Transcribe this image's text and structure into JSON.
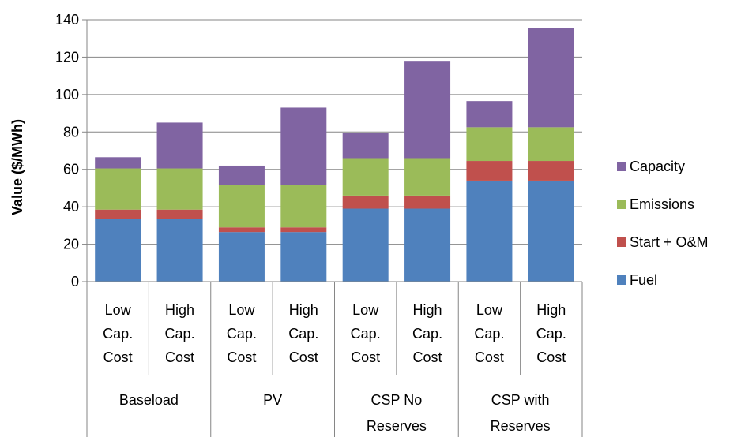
{
  "chart_data": {
    "type": "bar",
    "stacked": true,
    "ylabel": "Value ($/MWh)",
    "ylim": [
      0,
      140
    ],
    "yticks": [
      0,
      20,
      40,
      60,
      80,
      100,
      120,
      140
    ],
    "grid": true,
    "legend_position": "right",
    "categories": [
      [
        "Low",
        "Cap.",
        "Cost"
      ],
      [
        "High",
        "Cap.",
        "Cost"
      ],
      [
        "Low",
        "Cap.",
        "Cost"
      ],
      [
        "High",
        "Cap.",
        "Cost"
      ],
      [
        "Low",
        "Cap.",
        "Cost"
      ],
      [
        "High",
        "Cap.",
        "Cost"
      ],
      [
        "Low",
        "Cap.",
        "Cost"
      ],
      [
        "High",
        "Cap.",
        "Cost"
      ]
    ],
    "groups": [
      {
        "lines": [
          "Baseload"
        ]
      },
      {
        "lines": [
          "PV"
        ]
      },
      {
        "lines": [
          "CSP No",
          "Reserves"
        ]
      },
      {
        "lines": [
          "CSP with",
          "Reserves"
        ]
      }
    ],
    "series": [
      {
        "name": "Fuel",
        "color": "#4f81bd",
        "values": [
          33.5,
          33.5,
          26.5,
          26.5,
          39,
          39,
          54,
          54
        ]
      },
      {
        "name": "Start + O&M",
        "color": "#c0504d",
        "values": [
          5,
          5,
          2.5,
          2.5,
          7,
          7,
          10.5,
          10.5
        ]
      },
      {
        "name": "Emissions",
        "color": "#9bbb59",
        "values": [
          22,
          22,
          22.5,
          22.5,
          20,
          20,
          18,
          18
        ]
      },
      {
        "name": "Capacity",
        "color": "#8064a2",
        "values": [
          6,
          24.5,
          10.5,
          41.5,
          13.5,
          52,
          14,
          53
        ]
      }
    ]
  }
}
